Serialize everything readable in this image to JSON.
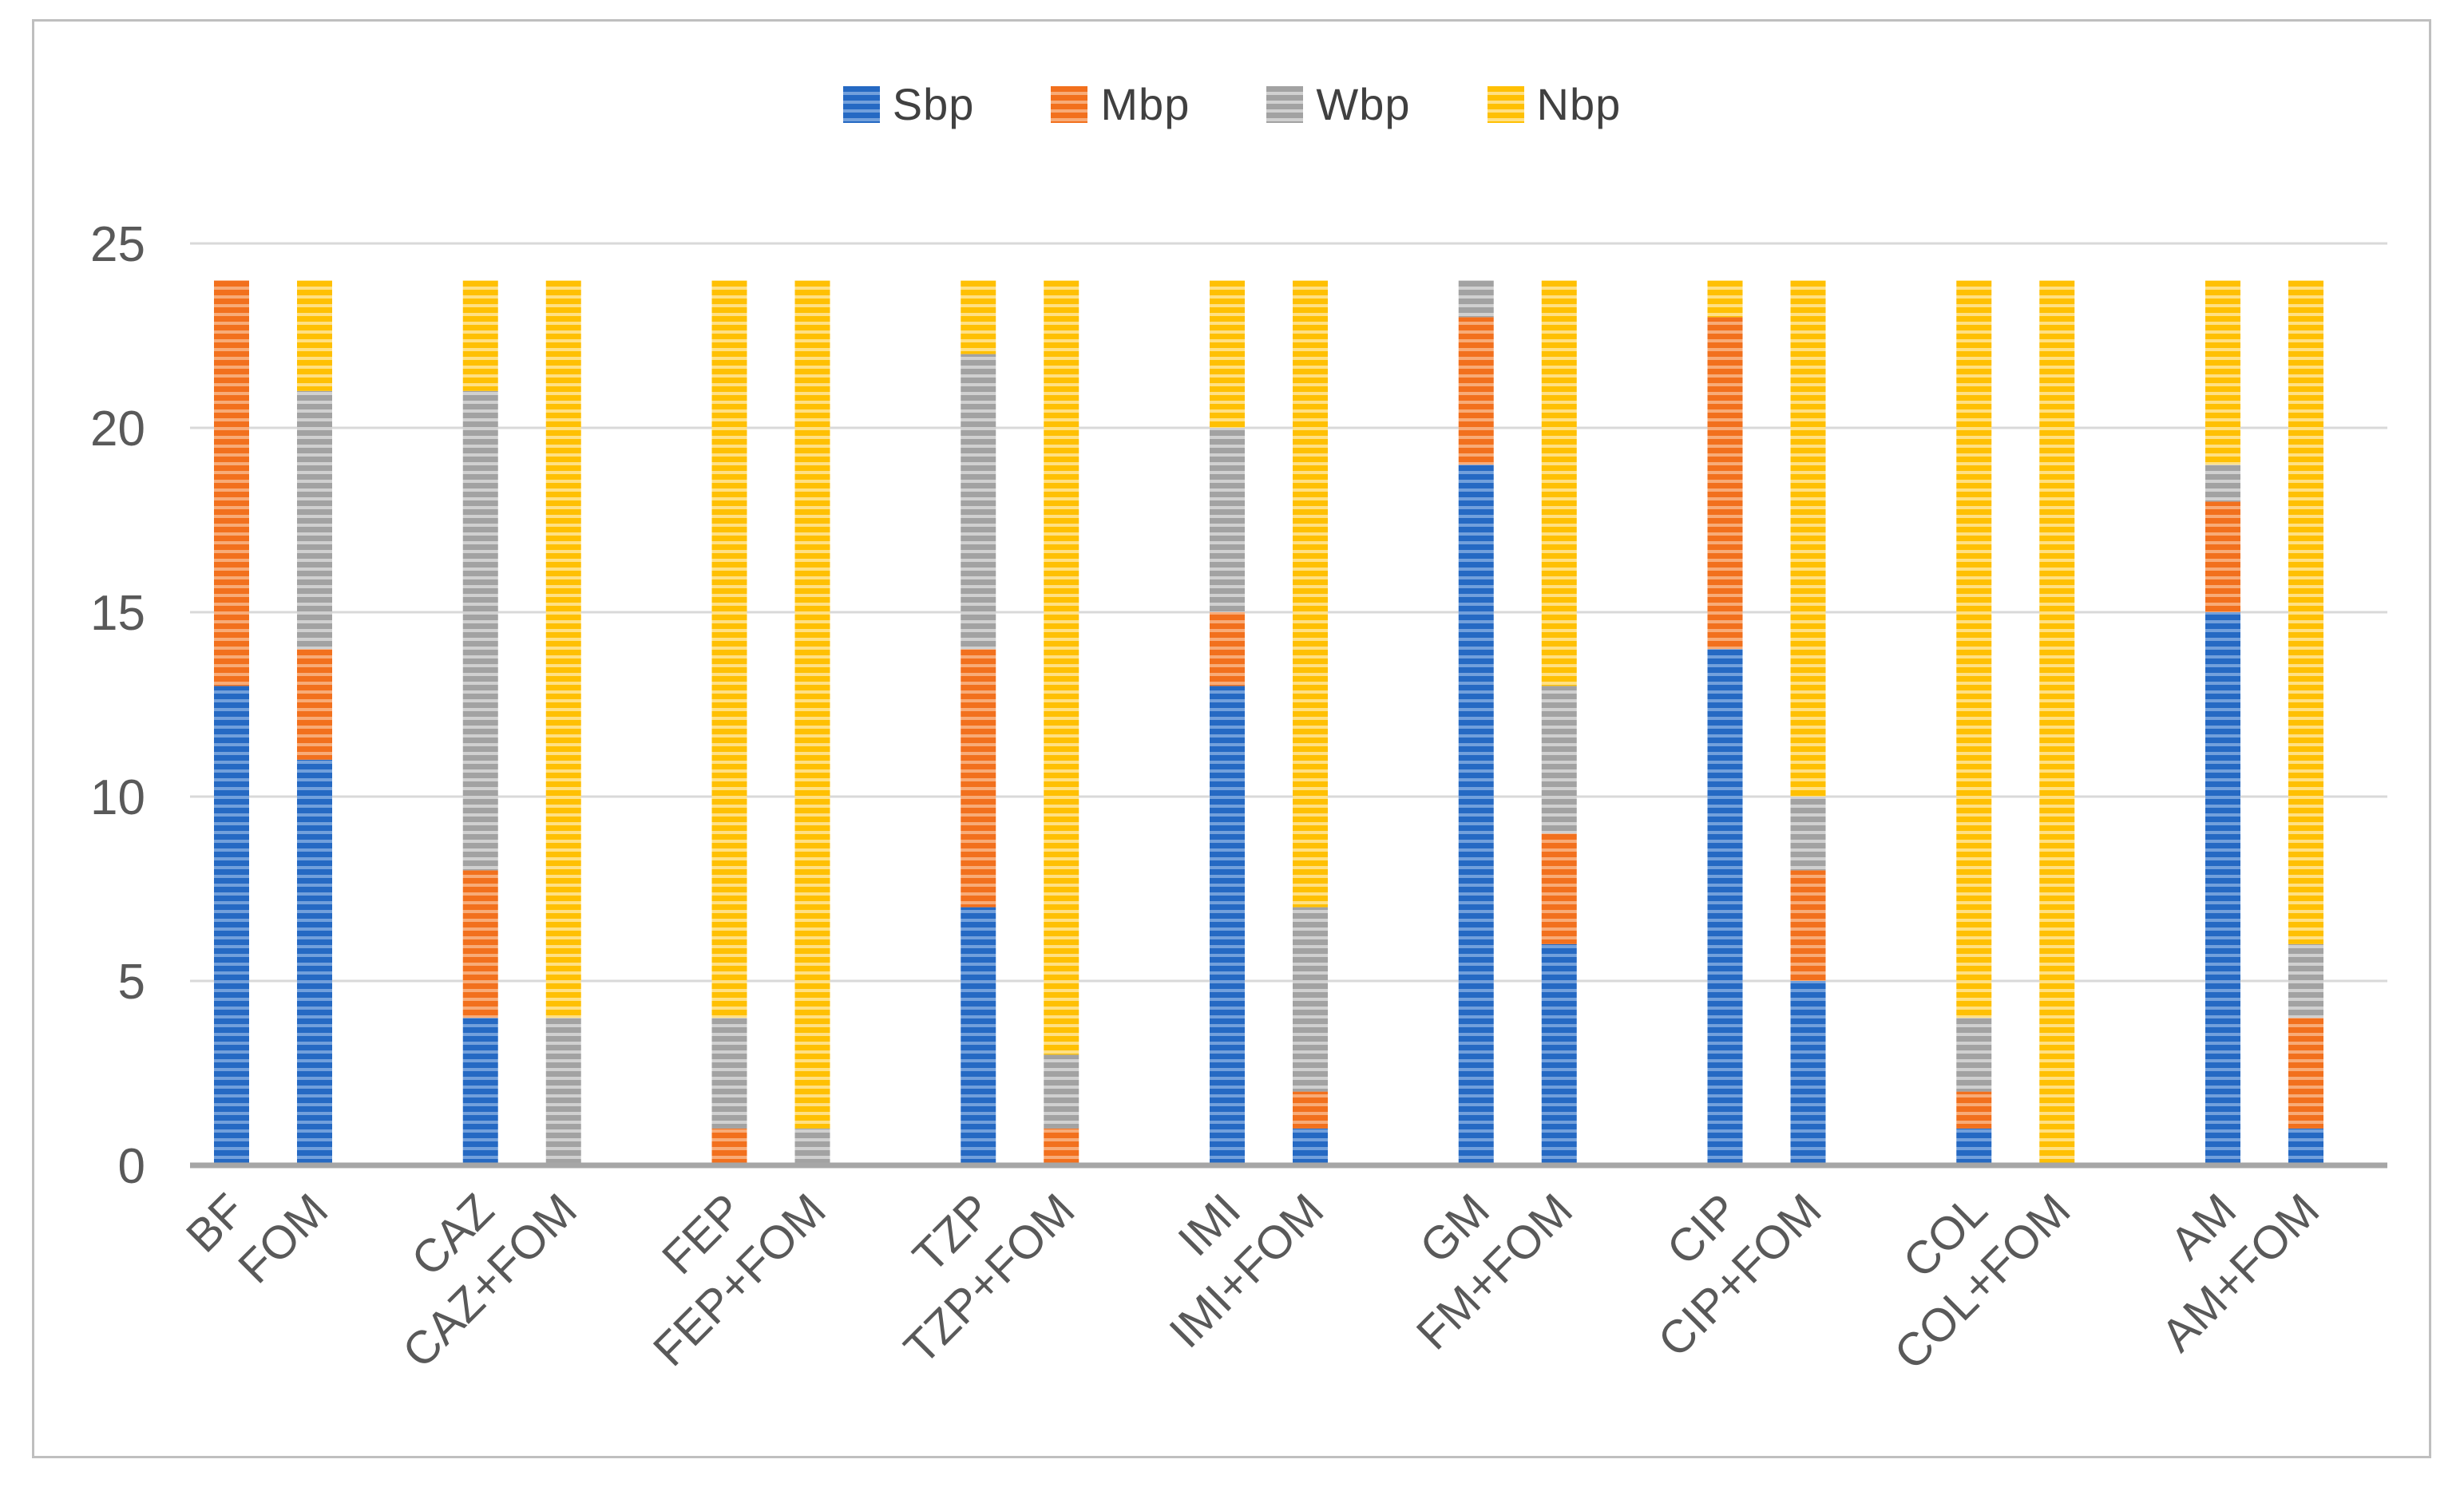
{
  "figure": {
    "background": "#ffffff",
    "border_color": "#bfbfbf"
  },
  "axes": {
    "grid_color": "#d9d9d9",
    "baseline_color": "#a6a6a6",
    "tick_text_color": "#595959"
  },
  "legend": {
    "position": "top-center",
    "text_color": "#404040"
  },
  "chart_data": {
    "type": "bar",
    "stacked": true,
    "title": "",
    "xlabel": "",
    "ylabel": "",
    "ylim": [
      0,
      25
    ],
    "yticks": [
      0,
      5,
      10,
      15,
      20,
      25
    ],
    "grid": true,
    "legend_position": "top",
    "categories": [
      "BF",
      "FOM",
      "CAZ",
      "CAZ+FOM",
      "FEP",
      "FEP+FOM",
      "TZP",
      "TZP+FOM",
      "IMI",
      "IMI+FOM",
      "GM",
      "FM+FOM",
      "CIP",
      "CIP+FOM",
      "COL",
      "COL+FOM",
      "AM",
      "AM+FOM"
    ],
    "series": [
      {
        "name": "Sbp",
        "color": "#2569c3",
        "stripe_color": "#72a0dc",
        "values": [
          13,
          11,
          4,
          0,
          0,
          0,
          7,
          0,
          13,
          1,
          19,
          6,
          14,
          5,
          1,
          0,
          15,
          1
        ]
      },
      {
        "name": "Mbp",
        "color": "#f2701d",
        "stripe_color": "#f8ab77",
        "values": [
          11,
          3,
          4,
          0,
          1,
          0,
          7,
          1,
          2,
          1,
          4,
          3,
          9,
          3,
          1,
          0,
          3,
          3
        ]
      },
      {
        "name": "Wbp",
        "color": "#a2a2a2",
        "stripe_color": "#d0d0d0",
        "values": [
          0,
          7,
          13,
          4,
          3,
          1,
          8,
          2,
          5,
          5,
          1,
          4,
          0,
          2,
          2,
          0,
          1,
          2
        ]
      },
      {
        "name": "Nbp",
        "color": "#ffc003",
        "stripe_color": "#ffe083",
        "values": [
          0,
          3,
          3,
          20,
          20,
          23,
          2,
          21,
          4,
          17,
          0,
          11,
          1,
          14,
          20,
          24,
          5,
          18
        ]
      }
    ]
  }
}
